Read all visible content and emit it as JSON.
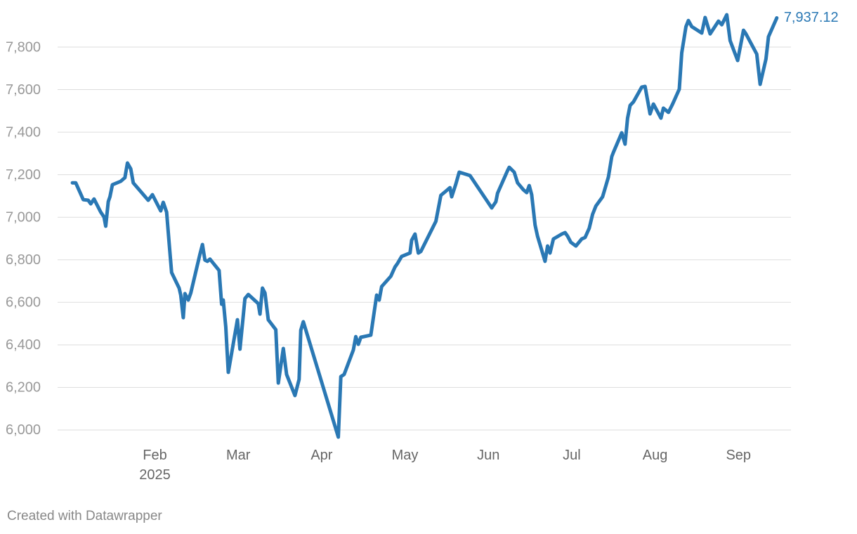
{
  "chart_data": {
    "type": "line",
    "x": [
      0.01,
      0.05,
      0.14,
      0.2,
      0.23,
      0.27,
      0.35,
      0.39,
      0.41,
      0.44,
      0.46,
      0.49,
      0.59,
      0.64,
      0.67,
      0.71,
      0.74,
      0.92,
      0.97,
      1.07,
      1.1,
      1.14,
      1.17,
      1.2,
      1.29,
      1.31,
      1.34,
      1.36,
      1.4,
      1.43,
      1.54,
      1.57,
      1.6,
      1.63,
      1.66,
      1.77,
      1.8,
      1.82,
      1.85,
      1.88,
      1.99,
      2.02,
      2.08,
      2.12,
      2.24,
      2.26,
      2.29,
      2.32,
      2.36,
      2.45,
      2.48,
      2.54,
      2.58,
      2.68,
      2.73,
      2.75,
      2.78,
      3.2,
      3.23,
      3.27,
      3.38,
      3.41,
      3.44,
      3.47,
      3.59,
      3.66,
      3.69,
      3.72,
      3.83,
      3.88,
      3.91,
      3.96,
      4.06,
      4.08,
      4.12,
      4.16,
      4.19,
      4.37,
      4.43,
      4.54,
      4.56,
      4.61,
      4.65,
      4.78,
      5.04,
      5.09,
      5.11,
      5.23,
      5.25,
      5.31,
      5.35,
      5.42,
      5.46,
      5.49,
      5.52,
      5.56,
      5.59,
      5.68,
      5.71,
      5.74,
      5.78,
      5.88,
      5.92,
      5.95,
      5.99,
      6.05,
      6.12,
      6.16,
      6.21,
      6.25,
      6.29,
      6.37,
      6.4,
      6.44,
      6.48,
      6.5,
      6.6,
      6.64,
      6.67,
      6.7,
      6.74,
      6.84,
      6.88,
      6.94,
      6.98,
      7.07,
      7.1,
      7.16,
      7.21,
      7.29,
      7.32,
      7.37,
      7.4,
      7.44,
      7.56,
      7.6,
      7.66,
      7.76,
      7.8,
      7.86,
      7.9,
      7.99,
      8.06,
      8.09,
      8.22,
      8.26,
      8.33,
      8.36,
      8.46
    ],
    "series": [
      {
        "color": "#2a78b4",
        "values": [
          7162,
          7162,
          7083,
          7080,
          7063,
          7086,
          7024,
          7001,
          6958,
          7073,
          7096,
          7153,
          7169,
          7186,
          7255,
          7228,
          7162,
          7080,
          7106,
          7030,
          7070,
          7024,
          6882,
          6740,
          6667,
          6634,
          6528,
          6641,
          6611,
          6644,
          6826,
          6872,
          6799,
          6793,
          6803,
          6750,
          6591,
          6611,
          6485,
          6271,
          6518,
          6380,
          6618,
          6637,
          6594,
          6545,
          6667,
          6644,
          6518,
          6472,
          6221,
          6383,
          6261,
          6162,
          6238,
          6469,
          6509,
          5967,
          6251,
          6261,
          6376,
          6439,
          6403,
          6436,
          6446,
          6634,
          6611,
          6674,
          6723,
          6766,
          6783,
          6816,
          6832,
          6892,
          6921,
          6832,
          6839,
          6981,
          7103,
          7139,
          7096,
          7156,
          7212,
          7196,
          7044,
          7073,
          7113,
          7219,
          7235,
          7212,
          7162,
          7129,
          7116,
          7149,
          7106,
          6964,
          6911,
          6793,
          6865,
          6832,
          6898,
          6921,
          6928,
          6911,
          6882,
          6865,
          6898,
          6905,
          6948,
          7014,
          7053,
          7096,
          7136,
          7189,
          7285,
          7305,
          7397,
          7344,
          7466,
          7526,
          7542,
          7612,
          7615,
          7486,
          7532,
          7466,
          7513,
          7493,
          7532,
          7602,
          7773,
          7896,
          7925,
          7896,
          7866,
          7939,
          7862,
          7922,
          7905,
          7952,
          7830,
          7737,
          7879,
          7862,
          7767,
          7625,
          7744,
          7849,
          7937.12
        ],
        "value_labels": [
          null,
          null,
          null,
          null,
          null,
          null,
          null,
          null,
          null,
          null,
          null,
          null,
          null,
          null,
          null,
          null,
          null,
          null,
          null,
          null,
          null,
          null,
          null,
          null,
          null,
          null,
          null,
          null,
          null,
          null,
          null,
          null,
          null,
          null,
          null,
          null,
          null,
          null,
          null,
          null,
          null,
          null,
          null,
          null,
          null,
          null,
          null,
          null,
          null,
          null,
          null,
          null,
          null,
          null,
          null,
          null,
          null,
          null,
          null,
          null,
          null,
          null,
          null,
          null,
          null,
          null,
          null,
          null,
          null,
          null,
          null,
          null,
          null,
          null,
          null,
          null,
          null,
          null,
          null,
          null,
          null,
          null,
          null,
          null,
          null,
          null,
          null,
          null,
          null,
          null,
          null,
          null,
          null,
          null,
          null,
          null,
          null,
          null,
          null,
          null,
          null,
          null,
          null,
          null,
          null,
          null,
          null,
          null,
          null,
          null,
          null,
          null,
          null,
          null,
          null,
          null,
          null,
          null,
          null,
          null,
          null,
          null,
          null,
          null,
          null,
          null,
          null,
          null,
          null,
          null,
          null,
          null,
          null,
          null,
          null,
          null,
          null,
          null,
          null,
          null,
          null,
          null,
          null,
          null,
          null,
          null,
          null,
          null,
          "7,937.12"
        ]
      }
    ],
    "xlim": [
      -0.1,
      8.63
    ],
    "xticks": [
      {
        "value": 1,
        "label": "Feb 2025"
      },
      {
        "value": 2,
        "label": "Mar"
      },
      {
        "value": 3,
        "label": "Apr"
      },
      {
        "value": 4,
        "label": "May"
      },
      {
        "value": 5,
        "label": "Jun"
      },
      {
        "value": 6,
        "label": "Jul"
      },
      {
        "value": 7,
        "label": "Aug"
      },
      {
        "value": 8,
        "label": "Sep"
      }
    ],
    "ylim": [
      5950,
      7980
    ],
    "yticks": [
      {
        "value": 6000,
        "label": "6,000"
      },
      {
        "value": 6200,
        "label": "6,200"
      },
      {
        "value": 6400,
        "label": "6,400"
      },
      {
        "value": 6600,
        "label": "6,600"
      },
      {
        "value": 6800,
        "label": "6,800"
      },
      {
        "value": 7000,
        "label": "7,000"
      },
      {
        "value": 7200,
        "label": "7,200"
      },
      {
        "value": 7400,
        "label": "7,400"
      },
      {
        "value": 7600,
        "label": "7,600"
      },
      {
        "value": 7800,
        "label": "7,800"
      }
    ],
    "grid": true,
    "footer": "Created with Datawrapper"
  }
}
